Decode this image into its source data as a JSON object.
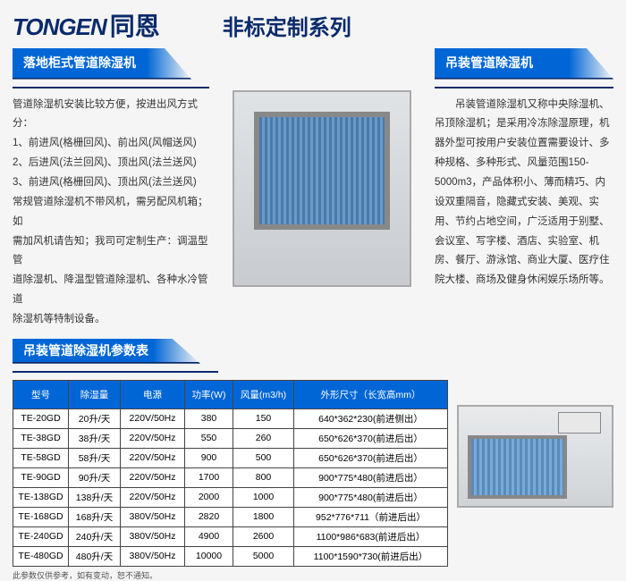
{
  "brand": {
    "en": "TONGEN",
    "cn": "同恩"
  },
  "series_title": "非标定制系列",
  "left_section": {
    "heading": "落地柜式管道除湿机",
    "lines": [
      "管道除湿机安装比较方便，按进出风方式分：",
      "1、前进风(格栅回风)、前出风(风帽送风)",
      "2、后进风(法兰回风)、顶出风(法兰送风)",
      "3、前进风(格栅回风)、顶出风(法兰送风)",
      "常规管道除湿机不带风机，需另配风机箱；如",
      "需加风机请告知；我司可定制生产：调温型管",
      "道除湿机、降温型管道除湿机、各种水冷管道",
      "除湿机等特制设备。"
    ]
  },
  "right_section": {
    "heading": "吊装管道除湿机",
    "text": "　　吊装管道除湿机又称中央除湿机、吊顶除湿机；是采用冷冻除湿原理，机器外型可按用户安装位置需要设计、多种规格、多种形式、风量范围150-5000m3，产品体积小、薄而精巧、内设双重隔音，隐藏式安装、美观、实用、节约占地空间，广泛适用于别墅、会议室、写字楼、酒店、实验室、机房、餐厅、游泳馆、商业大厦、医疗住院大楼、商场及健身休闲娱乐场所等。"
  },
  "param_heading": "吊装管道除湿机参数表",
  "table": {
    "columns": [
      "型号",
      "除湿量",
      "电源",
      "功率(W)",
      "风量(m3/h)",
      "外形尺寸（长宽高mm）"
    ],
    "rows": [
      [
        "TE-20GD",
        "20升/天",
        "220V/50Hz",
        "380",
        "150",
        "640*362*230(前进侧出）"
      ],
      [
        "TE-38GD",
        "38升/天",
        "220V/50Hz",
        "550",
        "260",
        "650*626*370(前进后出）"
      ],
      [
        "TE-58GD",
        "58升/天",
        "220V/50Hz",
        "900",
        "500",
        "650*626*370(前进后出）"
      ],
      [
        "TE-90GD",
        "90升/天",
        "220V/50Hz",
        "1700",
        "800",
        "900*775*480(前进后出）"
      ],
      [
        "TE-138GD",
        "138升/天",
        "220V/50Hz",
        "2000",
        "1000",
        "900*775*480(前进后出）"
      ],
      [
        "TE-168GD",
        "168升/天",
        "380V/50Hz",
        "2820",
        "1800",
        "952*776*711（前进后出）"
      ],
      [
        "TE-240GD",
        "240升/天",
        "380V/50Hz",
        "4900",
        "2600",
        "1100*986*683(前进后出）"
      ],
      [
        "TE-480GD",
        "480升/天",
        "380V/50Hz",
        "10000",
        "5000",
        "1100*1590*730(前进后出）"
      ]
    ],
    "col_widths": [
      "62px",
      "58px",
      "72px",
      "54px",
      "68px",
      "auto"
    ]
  },
  "note": "此参数仅供参考，如有变动，恕不通知。",
  "colors": {
    "brand": "#0a2a6b",
    "heading_bg": "#0066d6",
    "border": "#444",
    "page_bg": "#f5f5f5"
  }
}
